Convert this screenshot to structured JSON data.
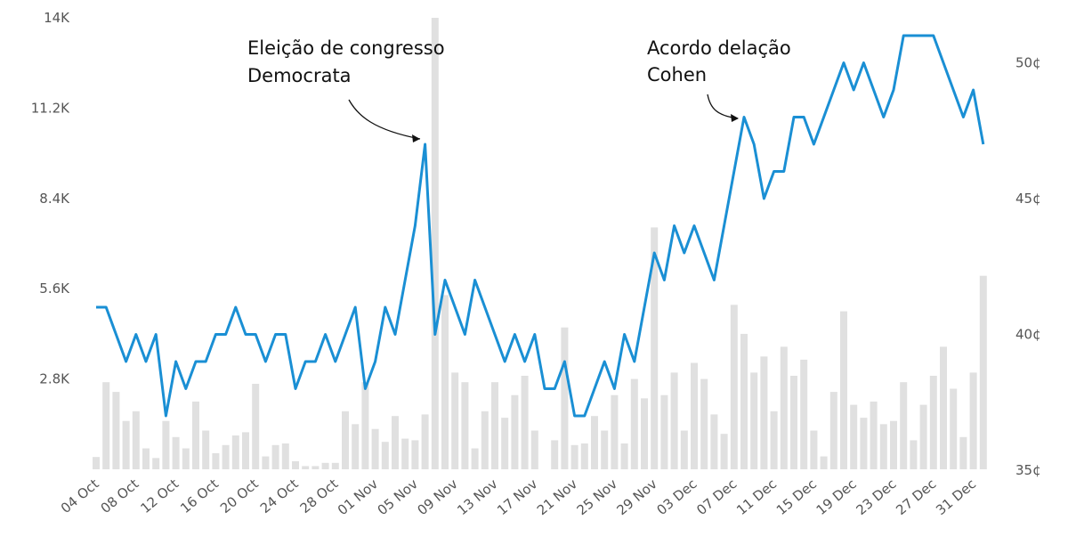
{
  "chart_data": {
    "type": "bar+line",
    "x_tick_labels": [
      "04 Oct",
      "08 Oct",
      "12 Oct",
      "16 Oct",
      "20 Oct",
      "24 Oct",
      "28 Oct",
      "01 Nov",
      "05 Nov",
      "09 Nov",
      "13 Nov",
      "17 Nov",
      "21 Nov",
      "25 Nov",
      "29 Nov",
      "03 Dec",
      "07 Dec",
      "11 Dec",
      "15 Dec",
      "19 Dec",
      "23 Dec",
      "27 Dec",
      "31 Dec"
    ],
    "y_left": {
      "ticks": [
        "2.8K",
        "5.6K",
        "8.4K",
        "11.2K",
        "14K"
      ],
      "tick_values": [
        2800,
        5600,
        8400,
        11200,
        14000
      ],
      "range": [
        0,
        14000
      ]
    },
    "y_right": {
      "ticks": [
        "35¢",
        "40¢",
        "45¢",
        "50¢"
      ],
      "tick_values": [
        35,
        40,
        45,
        50
      ],
      "range": [
        35,
        52
      ]
    },
    "volume_bars": [
      380,
      2700,
      2400,
      1500,
      1800,
      650,
      350,
      1500,
      1000,
      650,
      2100,
      1200,
      500,
      750,
      1050,
      1150,
      2650,
      400,
      750,
      800,
      250,
      100,
      100,
      200,
      200,
      1800,
      1400,
      2700,
      1250,
      850,
      1650,
      950,
      900,
      1700,
      14000,
      5400,
      3000,
      2700,
      650,
      1800,
      2700,
      1600,
      2300,
      2900,
      1200,
      0,
      900,
      4400,
      750,
      800,
      1650,
      1200,
      2300,
      800,
      2800,
      2200,
      7500,
      2300,
      3000,
      1200,
      3300,
      2800,
      1700,
      1100,
      5100,
      4200,
      3000,
      3500,
      1800,
      3800,
      2900,
      3400,
      1200,
      400,
      2400,
      4900,
      2000,
      1600,
      2100,
      1400,
      1500,
      2700,
      900,
      2000,
      2900,
      3800,
      2500,
      1000,
      3000,
      6000
    ],
    "price_cents": [
      41,
      41,
      40,
      39,
      40,
      39,
      40,
      37,
      39,
      38,
      39,
      39,
      40,
      40,
      41,
      40,
      40,
      39,
      40,
      40,
      38,
      39,
      39,
      40,
      39,
      40,
      41,
      38,
      39,
      41,
      40,
      42,
      44,
      47,
      40,
      42,
      41,
      40,
      42,
      41,
      40,
      39,
      40,
      39,
      40,
      38,
      38,
      39,
      37,
      37,
      38,
      39,
      38,
      40,
      39,
      41,
      43,
      42,
      44,
      43,
      44,
      43,
      42,
      44,
      46,
      48,
      47,
      45,
      46,
      46,
      48,
      48,
      47,
      48,
      49,
      50,
      49,
      50,
      49,
      48,
      49,
      51,
      51,
      51,
      51,
      50,
      49,
      48,
      49,
      47
    ],
    "annotations": [
      {
        "lines": [
          "Eleição de congresso",
          "Democrata"
        ],
        "target_index": 33
      },
      {
        "lines": [
          "Acordo delação",
          "Cohen"
        ],
        "target_index": 65
      }
    ],
    "colors": {
      "bars": "#e0e0e0",
      "line": "#1a8fd4",
      "axis_text": "#555555"
    },
    "grid": false,
    "legend": "none"
  }
}
